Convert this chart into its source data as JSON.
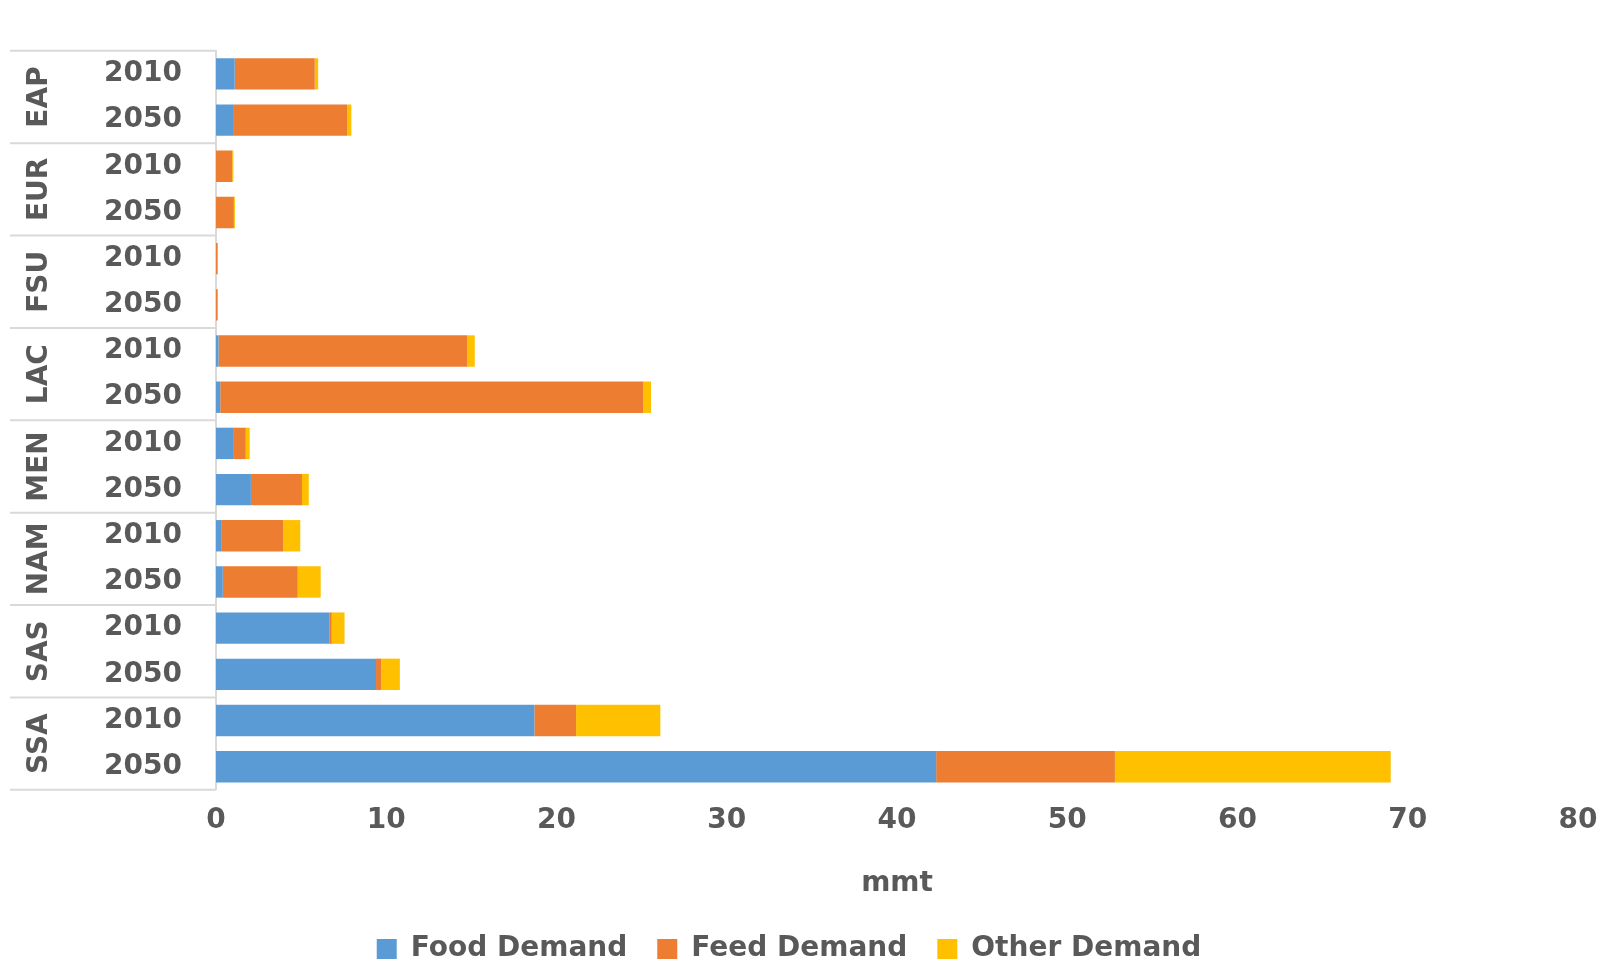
{
  "chart_data": {
    "type": "bar",
    "orientation": "horizontal",
    "stacked": true,
    "categories": [
      "2010",
      "2050",
      "2010",
      "2050",
      "2010",
      "2050",
      "2010",
      "2050",
      "2010",
      "2050",
      "2010",
      "2050",
      "2010",
      "2050",
      "2010",
      "2050"
    ],
    "series": [
      {
        "name": "Food Demand",
        "color": "#5b9bd5",
        "values": [
          1.1,
          1.0,
          0,
          0,
          0,
          0,
          0.15,
          0.25,
          1.05,
          2.05,
          0.3,
          0.4,
          6.65,
          9.4,
          18.7,
          42.3
        ]
      },
      {
        "name": "Feed Demand",
        "color": "#ed7d31",
        "values": [
          4.7,
          6.7,
          0.95,
          1.05,
          0.1,
          0.1,
          14.6,
          24.85,
          0.7,
          3.0,
          3.65,
          4.4,
          0.15,
          0.3,
          2.45,
          10.5
        ]
      },
      {
        "name": "Other Demand",
        "color": "#ffc000",
        "values": [
          0.2,
          0.25,
          0.07,
          0.06,
          null,
          null,
          0.45,
          0.45,
          0.23,
          0.4,
          1.0,
          1.35,
          0.75,
          1.1,
          4.95,
          16.2
        ]
      }
    ],
    "xlabel": "mmt",
    "xlim": [
      0,
      80
    ],
    "xticks": [
      0,
      10,
      20,
      30,
      40,
      50,
      60,
      70,
      80
    ],
    "annotations": [
      "EAP",
      "EUR",
      "FSU",
      "LAC",
      "MEN",
      "NAM",
      "SAS",
      "SSA"
    ],
    "grid": false,
    "legend": "bottom"
  }
}
